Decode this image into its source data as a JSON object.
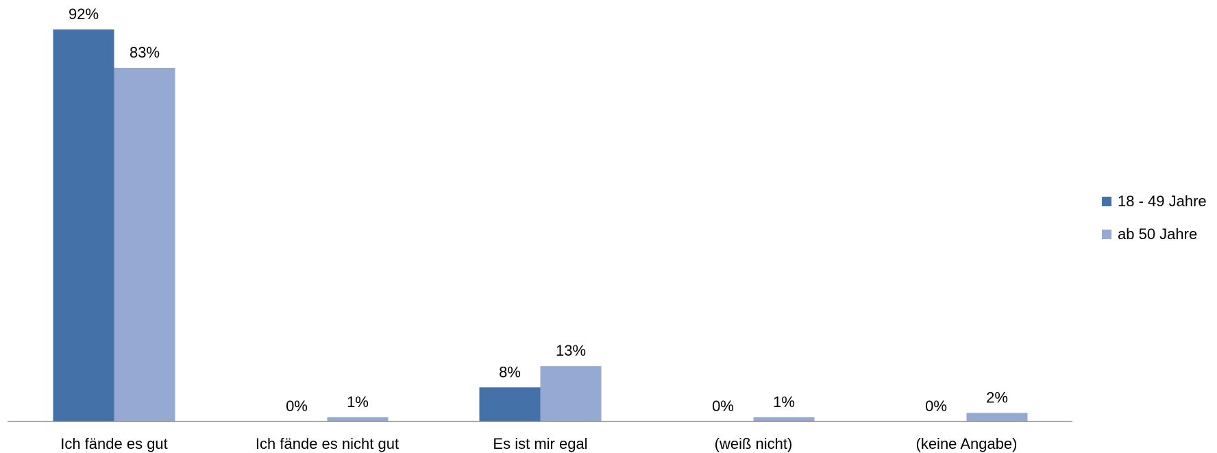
{
  "chart_data": {
    "type": "bar",
    "categories": [
      "Ich fände es gut",
      "Ich fände es nicht gut",
      "Es ist mir egal",
      "(weiß nicht)",
      "(keine Angabe)"
    ],
    "series": [
      {
        "name": "18 - 49 Jahre",
        "color": "#4472A8",
        "values": [
          92,
          0,
          8,
          0,
          0
        ],
        "labels": [
          "92%",
          "0%",
          "8%",
          "0%",
          "0%"
        ]
      },
      {
        "name": "ab 50 Jahre",
        "color": "#95A9D2",
        "values": [
          83,
          1,
          13,
          1,
          2
        ],
        "labels": [
          "83%",
          "1%",
          "13%",
          "1%",
          "2%"
        ]
      }
    ],
    "ylim": [
      0,
      100
    ],
    "grid": false,
    "legend_position": "right"
  }
}
